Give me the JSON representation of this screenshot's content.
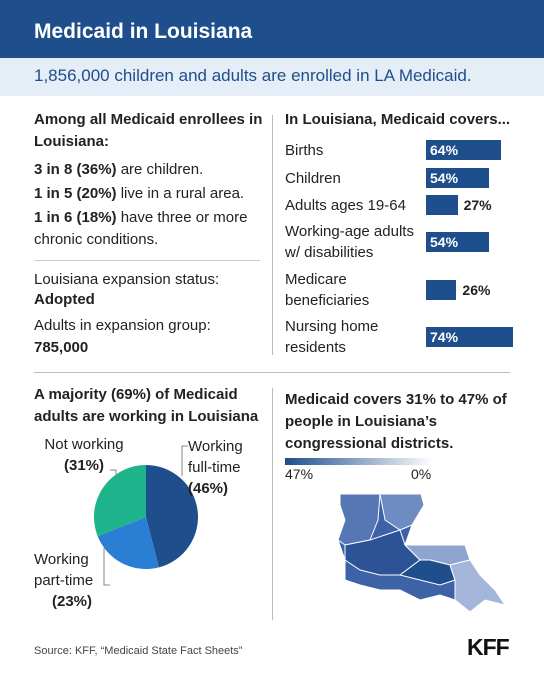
{
  "header": {
    "title": "Medicaid in Louisiana",
    "subtitle": "1,856,000 children and adults are enrolled in LA Medicaid."
  },
  "enrollees": {
    "heading": "Among all Medicaid enrollees in Louisiana:",
    "facts": [
      {
        "bold": "3 in 8 (36%)",
        "text": " are children."
      },
      {
        "bold": "1 in 5 (20%)",
        "text": " live in a rural area."
      },
      {
        "bold": "1 in 6 (18%)",
        "text": " have three or more chronic conditions."
      }
    ]
  },
  "expansion": {
    "status_label": "Louisiana expansion status:",
    "status": "Adopted",
    "group_label": "Adults in expansion group:",
    "group": "785,000"
  },
  "chart_data": [
    {
      "type": "bar",
      "title": "In Louisiana, Medicaid covers...",
      "categories": [
        "Births",
        "Children",
        "Adults ages 19-64",
        "Working-age adults w/ disabilities",
        "Medicare beneficiaries",
        "Nursing home residents"
      ],
      "values": [
        64,
        54,
        27,
        54,
        26,
        74
      ],
      "value_labels": [
        "64%",
        "54%",
        "27%",
        "54%",
        "26%",
        "74%"
      ],
      "color": "#1f4e8c"
    },
    {
      "type": "pie",
      "title": "A majority (69%) of Medicaid adults are working in Louisiana",
      "categories": [
        "Working full-time",
        "Working part-time",
        "Not working"
      ],
      "values": [
        46,
        23,
        31
      ],
      "value_labels": [
        "(46%)",
        "(23%)",
        "(31%)"
      ],
      "colors": [
        "#1f4e8c",
        "#2a7fd4",
        "#1fb38c"
      ]
    }
  ],
  "map": {
    "title": "Medicaid covers 31% to 47% of people in Louisiana’s congressional districts.",
    "legend": {
      "max_label": "47%",
      "min_label": "0%"
    }
  },
  "source": "Source: KFF, “Medicaid State Fact Sheets”",
  "logo": "KFF"
}
